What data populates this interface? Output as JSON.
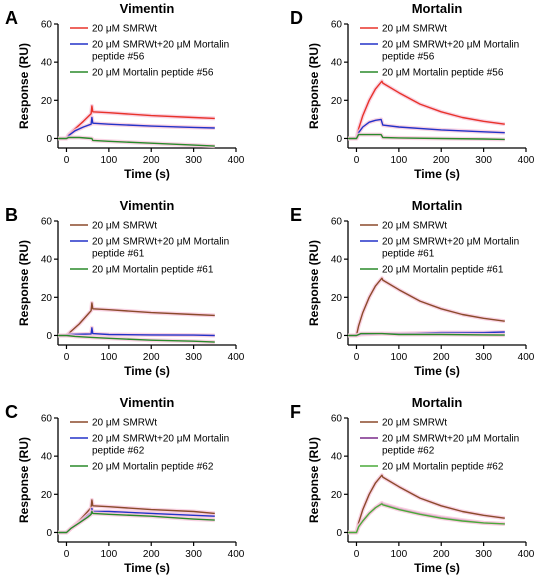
{
  "colors": {
    "red": "#e8332a",
    "blue": "#2432c8",
    "green": "#2a8a2a",
    "brown": "#8b4a2b",
    "purple": "#7a2a8a",
    "lightgreen": "#4aaa3a",
    "pink_band": "#f7c8dc"
  },
  "chart_data": [
    {
      "id": "A",
      "type": "line",
      "title": "Vimentin",
      "xlabel": "Time (s)",
      "ylabel": "Response (RU)",
      "xlim": [
        -20,
        400
      ],
      "ylim": [
        -5,
        60
      ],
      "xticks": [
        0,
        100,
        200,
        300,
        400
      ],
      "yticks": [
        0,
        20,
        40,
        60
      ],
      "series": [
        {
          "name": "20 μM SMRWt",
          "color": "red",
          "points": [
            [
              -20,
              0
            ],
            [
              0,
              0
            ],
            [
              5,
              2
            ],
            [
              20,
              5
            ],
            [
              40,
              9
            ],
            [
              58,
              13
            ],
            [
              60,
              17
            ],
            [
              62,
              14
            ],
            [
              100,
              13.5
            ],
            [
              200,
              12
            ],
            [
              300,
              11
            ],
            [
              350,
              10.5
            ]
          ]
        },
        {
          "name": "20 μM SMRWt+20 μM Mortalin peptide #56",
          "color": "blue",
          "points": [
            [
              -20,
              0
            ],
            [
              0,
              0
            ],
            [
              5,
              1.5
            ],
            [
              20,
              4
            ],
            [
              40,
              6
            ],
            [
              58,
              7.5
            ],
            [
              60,
              11
            ],
            [
              62,
              8
            ],
            [
              100,
              7.5
            ],
            [
              200,
              6.5
            ],
            [
              300,
              5.8
            ],
            [
              350,
              5.5
            ]
          ]
        },
        {
          "name": "20 μM Mortalin peptide #56",
          "color": "green",
          "points": [
            [
              -20,
              0
            ],
            [
              0,
              0
            ],
            [
              5,
              0.5
            ],
            [
              30,
              0.5
            ],
            [
              60,
              0
            ],
            [
              62,
              -1
            ],
            [
              100,
              -1.5
            ],
            [
              200,
              -2.5
            ],
            [
              300,
              -3.5
            ],
            [
              350,
              -4
            ]
          ]
        }
      ]
    },
    {
      "id": "B",
      "type": "line",
      "title": "Vimentin",
      "xlabel": "Time (s)",
      "ylabel": "Response (RU)",
      "xlim": [
        -20,
        400
      ],
      "ylim": [
        -5,
        60
      ],
      "xticks": [
        0,
        100,
        200,
        300,
        400
      ],
      "yticks": [
        0,
        20,
        40,
        60
      ],
      "series": [
        {
          "name": "20 μM SMRWt",
          "color": "brown",
          "points": [
            [
              -20,
              0
            ],
            [
              0,
              0
            ],
            [
              10,
              2
            ],
            [
              30,
              6
            ],
            [
              50,
              11
            ],
            [
              58,
              13
            ],
            [
              60,
              17
            ],
            [
              62,
              14
            ],
            [
              100,
              13.5
            ],
            [
              200,
              12
            ],
            [
              300,
              11
            ],
            [
              350,
              10.5
            ]
          ]
        },
        {
          "name": "20 μM SMRWt+20 μM Mortalin peptide #61",
          "color": "blue",
          "points": [
            [
              -20,
              0
            ],
            [
              0,
              0
            ],
            [
              5,
              0.5
            ],
            [
              58,
              0.8
            ],
            [
              60,
              4
            ],
            [
              62,
              1
            ],
            [
              100,
              0.5
            ],
            [
              200,
              0.3
            ],
            [
              300,
              0.2
            ],
            [
              350,
              0
            ]
          ]
        },
        {
          "name": "20 μM Mortalin peptide #61",
          "color": "green",
          "points": [
            [
              -20,
              0
            ],
            [
              0,
              0
            ],
            [
              20,
              -0.5
            ],
            [
              60,
              -1
            ],
            [
              100,
              -1.5
            ],
            [
              200,
              -2.5
            ],
            [
              300,
              -3
            ],
            [
              350,
              -3.5
            ]
          ]
        }
      ]
    },
    {
      "id": "C",
      "type": "line",
      "title": "Vimentin",
      "xlabel": "Time (s)",
      "ylabel": "Response (RU)",
      "xlim": [
        -20,
        400
      ],
      "ylim": [
        -5,
        60
      ],
      "xticks": [
        0,
        100,
        200,
        300,
        400
      ],
      "yticks": [
        0,
        20,
        40,
        60
      ],
      "series": [
        {
          "name": "20 μM SMRWt",
          "color": "brown",
          "points": [
            [
              -20,
              0
            ],
            [
              0,
              0
            ],
            [
              10,
              2
            ],
            [
              30,
              6
            ],
            [
              50,
              11
            ],
            [
              58,
              13
            ],
            [
              60,
              17
            ],
            [
              62,
              14
            ],
            [
              100,
              13.5
            ],
            [
              200,
              12
            ],
            [
              300,
              11
            ],
            [
              350,
              10
            ]
          ]
        },
        {
          "name": "20 μM SMRWt+20 μM Mortalin peptide #62",
          "color": "blue",
          "points": [
            [
              -20,
              0
            ],
            [
              0,
              0
            ],
            [
              10,
              2
            ],
            [
              30,
              5
            ],
            [
              50,
              9
            ],
            [
              58,
              10.5
            ],
            [
              60,
              12.5
            ],
            [
              62,
              11
            ],
            [
              100,
              11
            ],
            [
              200,
              10
            ],
            [
              300,
              9
            ],
            [
              350,
              8.5
            ]
          ]
        },
        {
          "name": "20 μM Mortalin peptide #62",
          "color": "green",
          "points": [
            [
              -20,
              0
            ],
            [
              0,
              0
            ],
            [
              10,
              2
            ],
            [
              30,
              5
            ],
            [
              50,
              8
            ],
            [
              58,
              9.5
            ],
            [
              60,
              11
            ],
            [
              62,
              10
            ],
            [
              100,
              9.5
            ],
            [
              200,
              8.5
            ],
            [
              300,
              7
            ],
            [
              350,
              6.5
            ]
          ]
        }
      ]
    },
    {
      "id": "D",
      "type": "line",
      "title": "Mortalin",
      "xlabel": "Time (s)",
      "ylabel": "Response (RU)",
      "xlim": [
        -20,
        400
      ],
      "ylim": [
        -5,
        60
      ],
      "xticks": [
        0,
        100,
        200,
        300,
        400
      ],
      "yticks": [
        0,
        20,
        40,
        60
      ],
      "series": [
        {
          "name": "20 μM SMRWt",
          "color": "red",
          "points": [
            [
              -20,
              0
            ],
            [
              0,
              0
            ],
            [
              5,
              5
            ],
            [
              15,
              12
            ],
            [
              30,
              20
            ],
            [
              45,
              26
            ],
            [
              60,
              30
            ],
            [
              62,
              29
            ],
            [
              100,
              24
            ],
            [
              150,
              18
            ],
            [
              200,
              14
            ],
            [
              250,
              11
            ],
            [
              300,
              9
            ],
            [
              350,
              7.5
            ]
          ]
        },
        {
          "name": "20 μM SMRWt+20 μM Mortalin peptide #56",
          "color": "blue",
          "points": [
            [
              -20,
              0
            ],
            [
              0,
              0
            ],
            [
              5,
              3
            ],
            [
              15,
              6
            ],
            [
              30,
              8.5
            ],
            [
              45,
              9.5
            ],
            [
              58,
              10
            ],
            [
              62,
              7
            ],
            [
              100,
              6
            ],
            [
              200,
              4.5
            ],
            [
              300,
              3.5
            ],
            [
              350,
              3
            ]
          ]
        },
        {
          "name": "20 μM Mortalin peptide #56",
          "color": "green",
          "points": [
            [
              -20,
              0
            ],
            [
              0,
              0
            ],
            [
              5,
              2
            ],
            [
              58,
              2
            ],
            [
              62,
              0.5
            ],
            [
              100,
              0.3
            ],
            [
              200,
              0
            ],
            [
              300,
              -0.3
            ],
            [
              350,
              -0.5
            ]
          ]
        }
      ]
    },
    {
      "id": "E",
      "type": "line",
      "title": "Mortalin",
      "xlabel": "Time (s)",
      "ylabel": "Response (RU)",
      "xlim": [
        -20,
        400
      ],
      "ylim": [
        -5,
        60
      ],
      "xticks": [
        0,
        100,
        200,
        300,
        400
      ],
      "yticks": [
        0,
        20,
        40,
        60
      ],
      "series": [
        {
          "name": "20 μM SMRWt",
          "color": "brown",
          "points": [
            [
              -20,
              0
            ],
            [
              0,
              0
            ],
            [
              5,
              5
            ],
            [
              15,
              12
            ],
            [
              30,
              20
            ],
            [
              45,
              26
            ],
            [
              60,
              30
            ],
            [
              62,
              29
            ],
            [
              100,
              24
            ],
            [
              150,
              18
            ],
            [
              200,
              14
            ],
            [
              250,
              11
            ],
            [
              300,
              9
            ],
            [
              350,
              7.5
            ]
          ]
        },
        {
          "name": "20 μM SMRWt+20 μM Mortalin peptide #61",
          "color": "blue",
          "points": [
            [
              -20,
              0
            ],
            [
              0,
              0
            ],
            [
              10,
              0.5
            ],
            [
              60,
              1
            ],
            [
              100,
              1
            ],
            [
              200,
              1.5
            ],
            [
              300,
              1.5
            ],
            [
              350,
              1.8
            ]
          ]
        },
        {
          "name": "20 μM Mortalin peptide #61",
          "color": "green",
          "points": [
            [
              -20,
              0
            ],
            [
              0,
              0
            ],
            [
              10,
              1
            ],
            [
              60,
              1
            ],
            [
              100,
              0.5
            ],
            [
              200,
              0.5
            ],
            [
              300,
              0.3
            ],
            [
              350,
              0.2
            ]
          ]
        }
      ]
    },
    {
      "id": "F",
      "type": "line",
      "title": "Mortalin",
      "xlabel": "Time (s)",
      "ylabel": "Response (RU)",
      "xlim": [
        -20,
        400
      ],
      "ylim": [
        -5,
        60
      ],
      "xticks": [
        0,
        100,
        200,
        300,
        400
      ],
      "yticks": [
        0,
        20,
        40,
        60
      ],
      "series": [
        {
          "name": "20 μM SMRWt",
          "color": "brown",
          "points": [
            [
              -20,
              0
            ],
            [
              0,
              0
            ],
            [
              5,
              5
            ],
            [
              15,
              12
            ],
            [
              30,
              20
            ],
            [
              45,
              26
            ],
            [
              60,
              30
            ],
            [
              62,
              29
            ],
            [
              100,
              24
            ],
            [
              150,
              18
            ],
            [
              200,
              14
            ],
            [
              250,
              11
            ],
            [
              300,
              9
            ],
            [
              350,
              7.5
            ]
          ]
        },
        {
          "name": "20 μM SMRWt+20 μM Mortalin peptide #62",
          "color": "purple",
          "points": [
            [
              -20,
              0
            ],
            [
              0,
              0
            ],
            [
              5,
              3
            ],
            [
              15,
              6
            ],
            [
              30,
              10
            ],
            [
              45,
              13
            ],
            [
              60,
              15.5
            ],
            [
              62,
              15
            ],
            [
              100,
              12.5
            ],
            [
              150,
              10
            ],
            [
              200,
              8
            ],
            [
              250,
              6.5
            ],
            [
              300,
              5
            ],
            [
              350,
              4.5
            ]
          ]
        },
        {
          "name": "20 μM Mortalin peptide #62",
          "color": "lightgreen",
          "points": [
            [
              -20,
              0
            ],
            [
              0,
              0
            ],
            [
              5,
              3
            ],
            [
              15,
              6
            ],
            [
              30,
              10
            ],
            [
              45,
              13
            ],
            [
              60,
              15
            ],
            [
              62,
              14.5
            ],
            [
              100,
              12
            ],
            [
              150,
              9.5
            ],
            [
              200,
              7.5
            ],
            [
              250,
              6
            ],
            [
              300,
              5
            ],
            [
              350,
              4.5
            ]
          ]
        }
      ]
    }
  ]
}
